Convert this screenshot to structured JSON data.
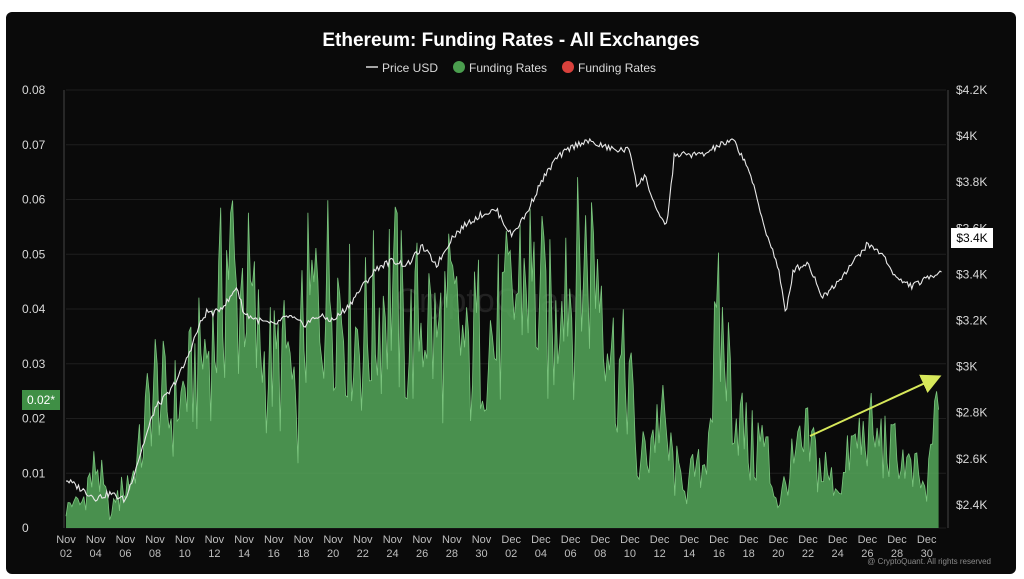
{
  "chart_data": {
    "type": "bar+line",
    "title": "Ethereum: Funding Rates - All Exchanges",
    "legend": [
      {
        "label": "Price USD",
        "kind": "line",
        "color": "#ffffff"
      },
      {
        "label": "Funding Rates",
        "kind": "dot",
        "color": "#4a9e4e"
      },
      {
        "label": "Funding Rates",
        "kind": "dot",
        "color": "#d9413c"
      }
    ],
    "left_axis": {
      "ticks": [
        "0",
        "0.01",
        "0.02",
        "0.03",
        "0.04",
        "0.05",
        "0.06",
        "0.07",
        "0.08"
      ],
      "range": [
        0,
        0.08
      ]
    },
    "right_axis": {
      "ticks": [
        "$2.4K",
        "$2.6K",
        "$2.8K",
        "$3K",
        "$3.2K",
        "$3.4K",
        "$3.6K",
        "$3.8K",
        "$4K",
        "$4.2K"
      ],
      "range": [
        2300,
        4200
      ]
    },
    "x_ticks": [
      [
        "Nov",
        "02"
      ],
      [
        "Nov",
        "04"
      ],
      [
        "Nov",
        "06"
      ],
      [
        "Nov",
        "08"
      ],
      [
        "Nov",
        "10"
      ],
      [
        "Nov",
        "12"
      ],
      [
        "Nov",
        "14"
      ],
      [
        "Nov",
        "16"
      ],
      [
        "Nov",
        "18"
      ],
      [
        "Nov",
        "20"
      ],
      [
        "Nov",
        "22"
      ],
      [
        "Nov",
        "24"
      ],
      [
        "Nov",
        "26"
      ],
      [
        "Nov",
        "28"
      ],
      [
        "Nov",
        "30"
      ],
      [
        "Dec",
        "02"
      ],
      [
        "Dec",
        "04"
      ],
      [
        "Dec",
        "06"
      ],
      [
        "Dec",
        "08"
      ],
      [
        "Dec",
        "10"
      ],
      [
        "Dec",
        "12"
      ],
      [
        "Dec",
        "14"
      ],
      [
        "Dec",
        "16"
      ],
      [
        "Dec",
        "18"
      ],
      [
        "Dec",
        "20"
      ],
      [
        "Dec",
        "22"
      ],
      [
        "Dec",
        "24"
      ],
      [
        "Dec",
        "26"
      ],
      [
        "Dec",
        "28"
      ],
      [
        "Dec",
        "30"
      ]
    ],
    "x_range_days": [
      0,
      59.3
    ],
    "funding_points": [
      [
        0,
        0.005
      ],
      [
        1,
        0.004
      ],
      [
        2,
        0.011
      ],
      [
        3,
        0.003
      ],
      [
        4,
        0.008
      ],
      [
        5,
        0.013
      ],
      [
        5.5,
        0.022
      ],
      [
        6,
        0.026
      ],
      [
        7,
        0.021
      ],
      [
        8,
        0.024
      ],
      [
        9,
        0.03
      ],
      [
        10,
        0.034
      ],
      [
        10.7,
        0.045
      ],
      [
        11,
        0.053
      ],
      [
        11.5,
        0.04
      ],
      [
        12,
        0.046
      ],
      [
        13,
        0.033
      ],
      [
        14,
        0.028
      ],
      [
        15,
        0.032
      ],
      [
        15.5,
        0.017
      ],
      [
        16,
        0.038
      ],
      [
        17,
        0.042
      ],
      [
        18,
        0.047
      ],
      [
        19,
        0.038
      ],
      [
        20,
        0.035
      ],
      [
        21,
        0.038
      ],
      [
        22,
        0.046
      ],
      [
        23,
        0.032
      ],
      [
        24,
        0.04
      ],
      [
        25,
        0.034
      ],
      [
        26,
        0.039
      ],
      [
        27,
        0.03
      ],
      [
        28,
        0.037
      ],
      [
        29,
        0.034
      ],
      [
        30,
        0.04
      ],
      [
        31,
        0.047
      ],
      [
        32,
        0.04
      ],
      [
        33,
        0.035
      ],
      [
        33.5,
        0.057
      ],
      [
        34,
        0.042
      ],
      [
        35,
        0.05
      ],
      [
        36,
        0.048
      ],
      [
        37,
        0.028
      ],
      [
        38,
        0.028
      ],
      [
        38.5,
        0.01
      ],
      [
        39,
        0.013
      ],
      [
        40,
        0.02
      ],
      [
        41,
        0.01
      ],
      [
        42,
        0.008
      ],
      [
        43,
        0.012
      ],
      [
        44,
        0.037
      ],
      [
        45,
        0.024
      ],
      [
        46,
        0.014
      ],
      [
        47,
        0.016
      ],
      [
        48,
        0.004
      ],
      [
        49,
        0.011
      ],
      [
        50,
        0.016
      ],
      [
        51,
        0.011
      ],
      [
        52,
        0.007
      ],
      [
        53,
        0.015
      ],
      [
        54,
        0.017
      ],
      [
        55,
        0.015
      ],
      [
        56,
        0.014
      ],
      [
        57,
        0.01
      ],
      [
        58,
        0.007
      ],
      [
        58.8,
        0.023
      ]
    ],
    "price_points": [
      [
        0,
        2510
      ],
      [
        1,
        2470
      ],
      [
        2,
        2430
      ],
      [
        3,
        2450
      ],
      [
        4,
        2420
      ],
      [
        5,
        2620
      ],
      [
        6,
        2820
      ],
      [
        7,
        2890
      ],
      [
        8,
        3010
      ],
      [
        9,
        3180
      ],
      [
        9.5,
        3240
      ],
      [
        10,
        3230
      ],
      [
        11,
        3290
      ],
      [
        11.5,
        3350
      ],
      [
        12,
        3230
      ],
      [
        13,
        3200
      ],
      [
        14,
        3180
      ],
      [
        15,
        3220
      ],
      [
        16,
        3180
      ],
      [
        17,
        3220
      ],
      [
        18,
        3200
      ],
      [
        19,
        3260
      ],
      [
        20,
        3350
      ],
      [
        21,
        3430
      ],
      [
        22,
        3460
      ],
      [
        23,
        3440
      ],
      [
        24,
        3520
      ],
      [
        25,
        3440
      ],
      [
        26,
        3560
      ],
      [
        27,
        3620
      ],
      [
        28,
        3660
      ],
      [
        29,
        3680
      ],
      [
        30,
        3570
      ],
      [
        31,
        3660
      ],
      [
        32,
        3800
      ],
      [
        33,
        3900
      ],
      [
        34,
        3950
      ],
      [
        35,
        3980
      ],
      [
        36,
        3960
      ],
      [
        37,
        3940
      ],
      [
        38,
        3940
      ],
      [
        38.5,
        3780
      ],
      [
        39,
        3830
      ],
      [
        40,
        3640
      ],
      [
        40.5,
        3620
      ],
      [
        41,
        3920
      ],
      [
        42,
        3920
      ],
      [
        43,
        3920
      ],
      [
        44,
        3960
      ],
      [
        45,
        3980
      ],
      [
        46,
        3860
      ],
      [
        47,
        3620
      ],
      [
        48,
        3430
      ],
      [
        48.5,
        3220
      ],
      [
        49,
        3420
      ],
      [
        50,
        3450
      ],
      [
        51,
        3300
      ],
      [
        52,
        3370
      ],
      [
        53,
        3450
      ],
      [
        54,
        3530
      ],
      [
        55,
        3490
      ],
      [
        56,
        3380
      ],
      [
        57,
        3350
      ],
      [
        58,
        3380
      ],
      [
        59,
        3420
      ]
    ],
    "current_labels": {
      "funding": "0.02*",
      "price": "$3.4K"
    },
    "watermark": "CryptoQuant",
    "footer": "@ CryptoQuant. All rights reserved"
  }
}
